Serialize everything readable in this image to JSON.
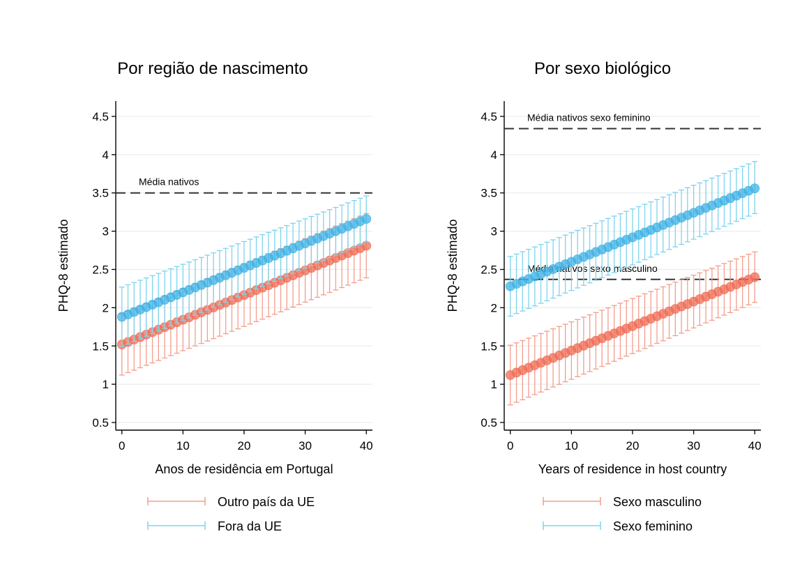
{
  "colors": {
    "background": "#ffffff",
    "grid": "#e9eef1",
    "axis": "#000000",
    "reference_line": "#333333",
    "red_point": "#ef6a52",
    "red_bar": "#f39d8c",
    "blue_point": "#3cb0e3",
    "blue_bar": "#7ed3ee"
  },
  "chart_data": [
    {
      "type": "scatter",
      "title": "Por região de nascimento",
      "xlabel": "Anos de residência em Portugal",
      "ylabel": "PHQ-8 estimado",
      "xlim": [
        -1,
        41
      ],
      "ylim": [
        0.4,
        4.7
      ],
      "xticks": [
        "0",
        "10",
        "20",
        "30",
        "40"
      ],
      "yticks": [
        "0.5",
        "1",
        "1.5",
        "2",
        "2.5",
        "3",
        "3.5",
        "4",
        "4.5"
      ],
      "grid": true,
      "legend_position": "bottom",
      "reference_lines": [
        {
          "label": "Média nativos",
          "y": 3.5
        }
      ],
      "series": [
        {
          "name": "Outro país da UE",
          "color": "red",
          "x": [
            0,
            40
          ],
          "y": [
            1.52,
            2.81
          ],
          "ci_lower": [
            1.12,
            2.39
          ],
          "ci_upper": [
            1.92,
            3.23
          ]
        },
        {
          "name": "Fora da UE",
          "color": "blue",
          "x": [
            0,
            40
          ],
          "y": [
            1.88,
            3.16
          ],
          "ci_lower": [
            1.49,
            2.86
          ],
          "ci_upper": [
            2.27,
            3.46
          ]
        }
      ]
    },
    {
      "type": "scatter",
      "title": "Por sexo biológico",
      "xlabel": "Years of residence in host country",
      "ylabel": "PHQ-8 estimado",
      "xlim": [
        -1,
        41
      ],
      "ylim": [
        0.4,
        4.7
      ],
      "xticks": [
        "0",
        "10",
        "20",
        "30",
        "40"
      ],
      "yticks": [
        "0.5",
        "1",
        "1.5",
        "2",
        "2.5",
        "3",
        "3.5",
        "4",
        "4.5"
      ],
      "grid": true,
      "legend_position": "bottom",
      "reference_lines": [
        {
          "label": "Média nativos sexo feminino",
          "y": 4.34
        },
        {
          "label": "Média nativos sexo masculino",
          "y": 2.37
        }
      ],
      "series": [
        {
          "name": "Sexo masculino",
          "color": "red",
          "x": [
            0,
            40
          ],
          "y": [
            1.12,
            2.4
          ],
          "ci_lower": [
            0.73,
            2.07
          ],
          "ci_upper": [
            1.51,
            2.73
          ]
        },
        {
          "name": "Sexo feminino",
          "color": "blue",
          "x": [
            0,
            40
          ],
          "y": [
            2.28,
            3.56
          ],
          "ci_lower": [
            1.89,
            3.23
          ],
          "ci_upper": [
            2.67,
            3.91
          ]
        }
      ]
    }
  ]
}
